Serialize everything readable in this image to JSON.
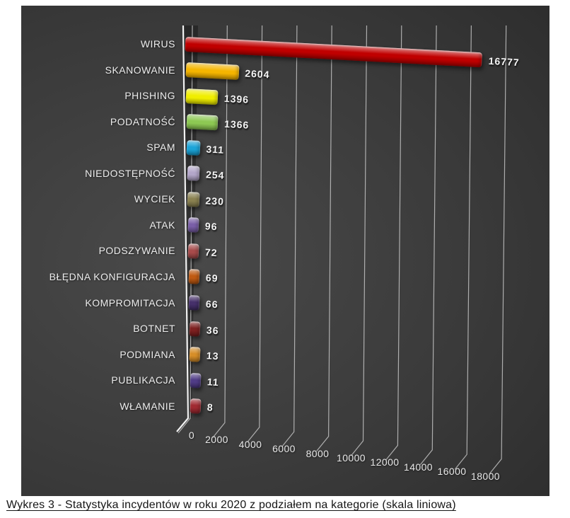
{
  "page": {
    "background": "#ffffff"
  },
  "caption": "Wykres 3 - Statystyka incydentów w roku 2020 z podziałem na kategorie (skala liniowa)",
  "chart_data": {
    "type": "bar",
    "orientation": "horizontal",
    "style": "3d",
    "title": "",
    "xlabel": "",
    "ylabel": "",
    "categories": [
      "WIRUS",
      "SKANOWANIE",
      "PHISHING",
      "PODATNOŚĆ",
      "SPAM",
      "NIEDOSTĘPNOŚĆ",
      "WYCIEK",
      "ATAK",
      "PODSZYWANIE",
      "BŁĘDNA KONFIGURACJA",
      "KOMPROMITACJA",
      "BOTNET",
      "PODMIANA",
      "PUBLIKACJA",
      "WŁAMANIE"
    ],
    "values": [
      16777,
      2604,
      1396,
      1366,
      311,
      254,
      230,
      96,
      72,
      69,
      66,
      36,
      13,
      11,
      8
    ],
    "bar_colors": [
      "#c00000",
      "#f5b500",
      "#f0ee00",
      "#8dc853",
      "#1ba4d8",
      "#b3a6c9",
      "#8a8150",
      "#7a5fa8",
      "#a84b4b",
      "#c05a12",
      "#46306b",
      "#7e2020",
      "#d78e28",
      "#503c87",
      "#a12a32"
    ],
    "value_labels_shown": true,
    "x_ticks": [
      0,
      2000,
      4000,
      6000,
      8000,
      10000,
      12000,
      14000,
      16000,
      18000
    ],
    "xlim": [
      0,
      18000
    ],
    "grid": true,
    "legend": false,
    "background": {
      "type": "dark-gradient",
      "inner": "#4a4a4a",
      "outer": "#232323"
    },
    "colors": {
      "category_text": "#ededed",
      "value_text": "#f5f5f5",
      "tick_text": "#e8e8e8",
      "gridline": "#cccccc",
      "axis": "#f2f2f2"
    }
  }
}
